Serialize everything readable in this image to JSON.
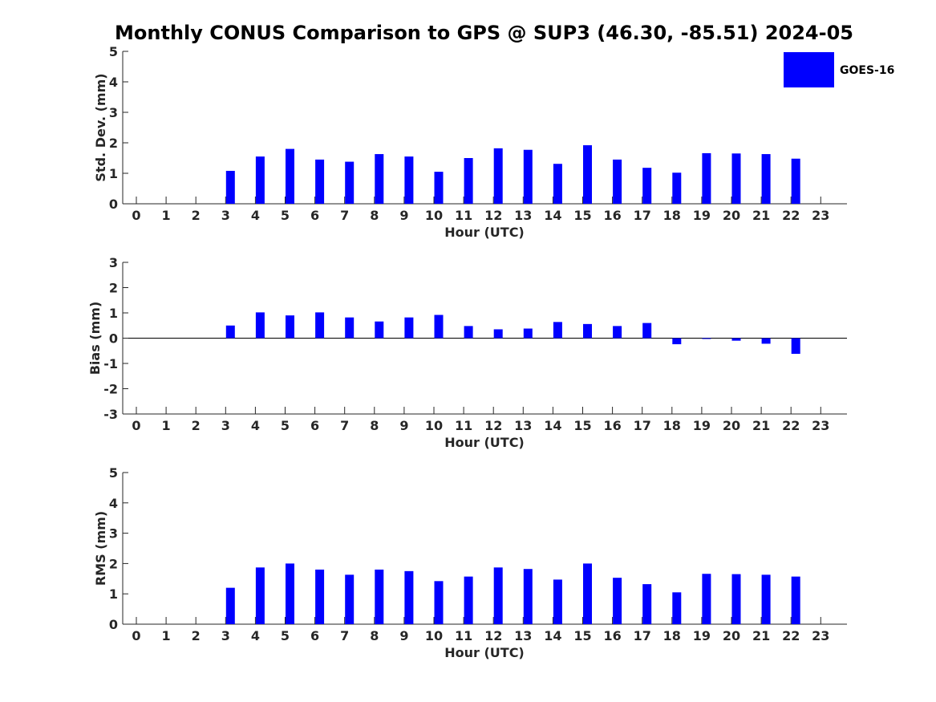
{
  "title": "Monthly CONUS Comparison to GPS @ SUP3 (46.30, -85.51) 2024-05",
  "colors": {
    "bar": "#0000ff",
    "axis": "#262626"
  },
  "legend": {
    "label": "GOES-16",
    "placement": "top-right"
  },
  "chart_data": [
    {
      "type": "bar",
      "ylabel": "Std. Dev. (mm)",
      "xlabel": "Hour (UTC)",
      "ylim": [
        0,
        5
      ],
      "yticks": [
        0,
        1,
        2,
        3,
        4,
        5
      ],
      "categories": [
        "0",
        "1",
        "2",
        "3",
        "4",
        "5",
        "6",
        "7",
        "8",
        "9",
        "10",
        "11",
        "12",
        "13",
        "14",
        "15",
        "16",
        "17",
        "18",
        "19",
        "20",
        "21",
        "22",
        "23"
      ],
      "series": [
        {
          "name": "GOES-16",
          "values": [
            null,
            null,
            null,
            1.08,
            1.55,
            1.8,
            1.45,
            1.38,
            1.63,
            1.55,
            1.05,
            1.5,
            1.82,
            1.77,
            1.31,
            1.92,
            1.45,
            1.18,
            1.02,
            1.66,
            1.65,
            1.63,
            1.48,
            null
          ]
        }
      ]
    },
    {
      "type": "bar",
      "ylabel": "Bias (mm)",
      "xlabel": "Hour (UTC)",
      "ylim": [
        -3,
        3
      ],
      "yticks": [
        -3,
        -2,
        -1,
        0,
        1,
        2,
        3
      ],
      "zero_line": true,
      "categories": [
        "0",
        "1",
        "2",
        "3",
        "4",
        "5",
        "6",
        "7",
        "8",
        "9",
        "10",
        "11",
        "12",
        "13",
        "14",
        "15",
        "16",
        "17",
        "18",
        "19",
        "20",
        "21",
        "22",
        "23"
      ],
      "series": [
        {
          "name": "GOES-16",
          "values": [
            null,
            null,
            null,
            0.5,
            1.02,
            0.9,
            1.02,
            0.82,
            0.66,
            0.82,
            0.92,
            0.48,
            0.35,
            0.38,
            0.64,
            0.56,
            0.48,
            0.6,
            -0.24,
            -0.02,
            -0.1,
            -0.22,
            -0.62,
            null
          ]
        }
      ]
    },
    {
      "type": "bar",
      "ylabel": "RMS (mm)",
      "xlabel": "Hour (UTC)",
      "ylim": [
        0,
        5
      ],
      "yticks": [
        0,
        1,
        2,
        3,
        4,
        5
      ],
      "categories": [
        "0",
        "1",
        "2",
        "3",
        "4",
        "5",
        "6",
        "7",
        "8",
        "9",
        "10",
        "11",
        "12",
        "13",
        "14",
        "15",
        "16",
        "17",
        "18",
        "19",
        "20",
        "21",
        "22",
        "23"
      ],
      "series": [
        {
          "name": "GOES-16",
          "values": [
            null,
            null,
            null,
            1.2,
            1.87,
            2.0,
            1.8,
            1.63,
            1.8,
            1.75,
            1.42,
            1.57,
            1.87,
            1.82,
            1.47,
            2.0,
            1.53,
            1.32,
            1.05,
            1.66,
            1.65,
            1.63,
            1.57,
            null
          ]
        }
      ]
    }
  ]
}
